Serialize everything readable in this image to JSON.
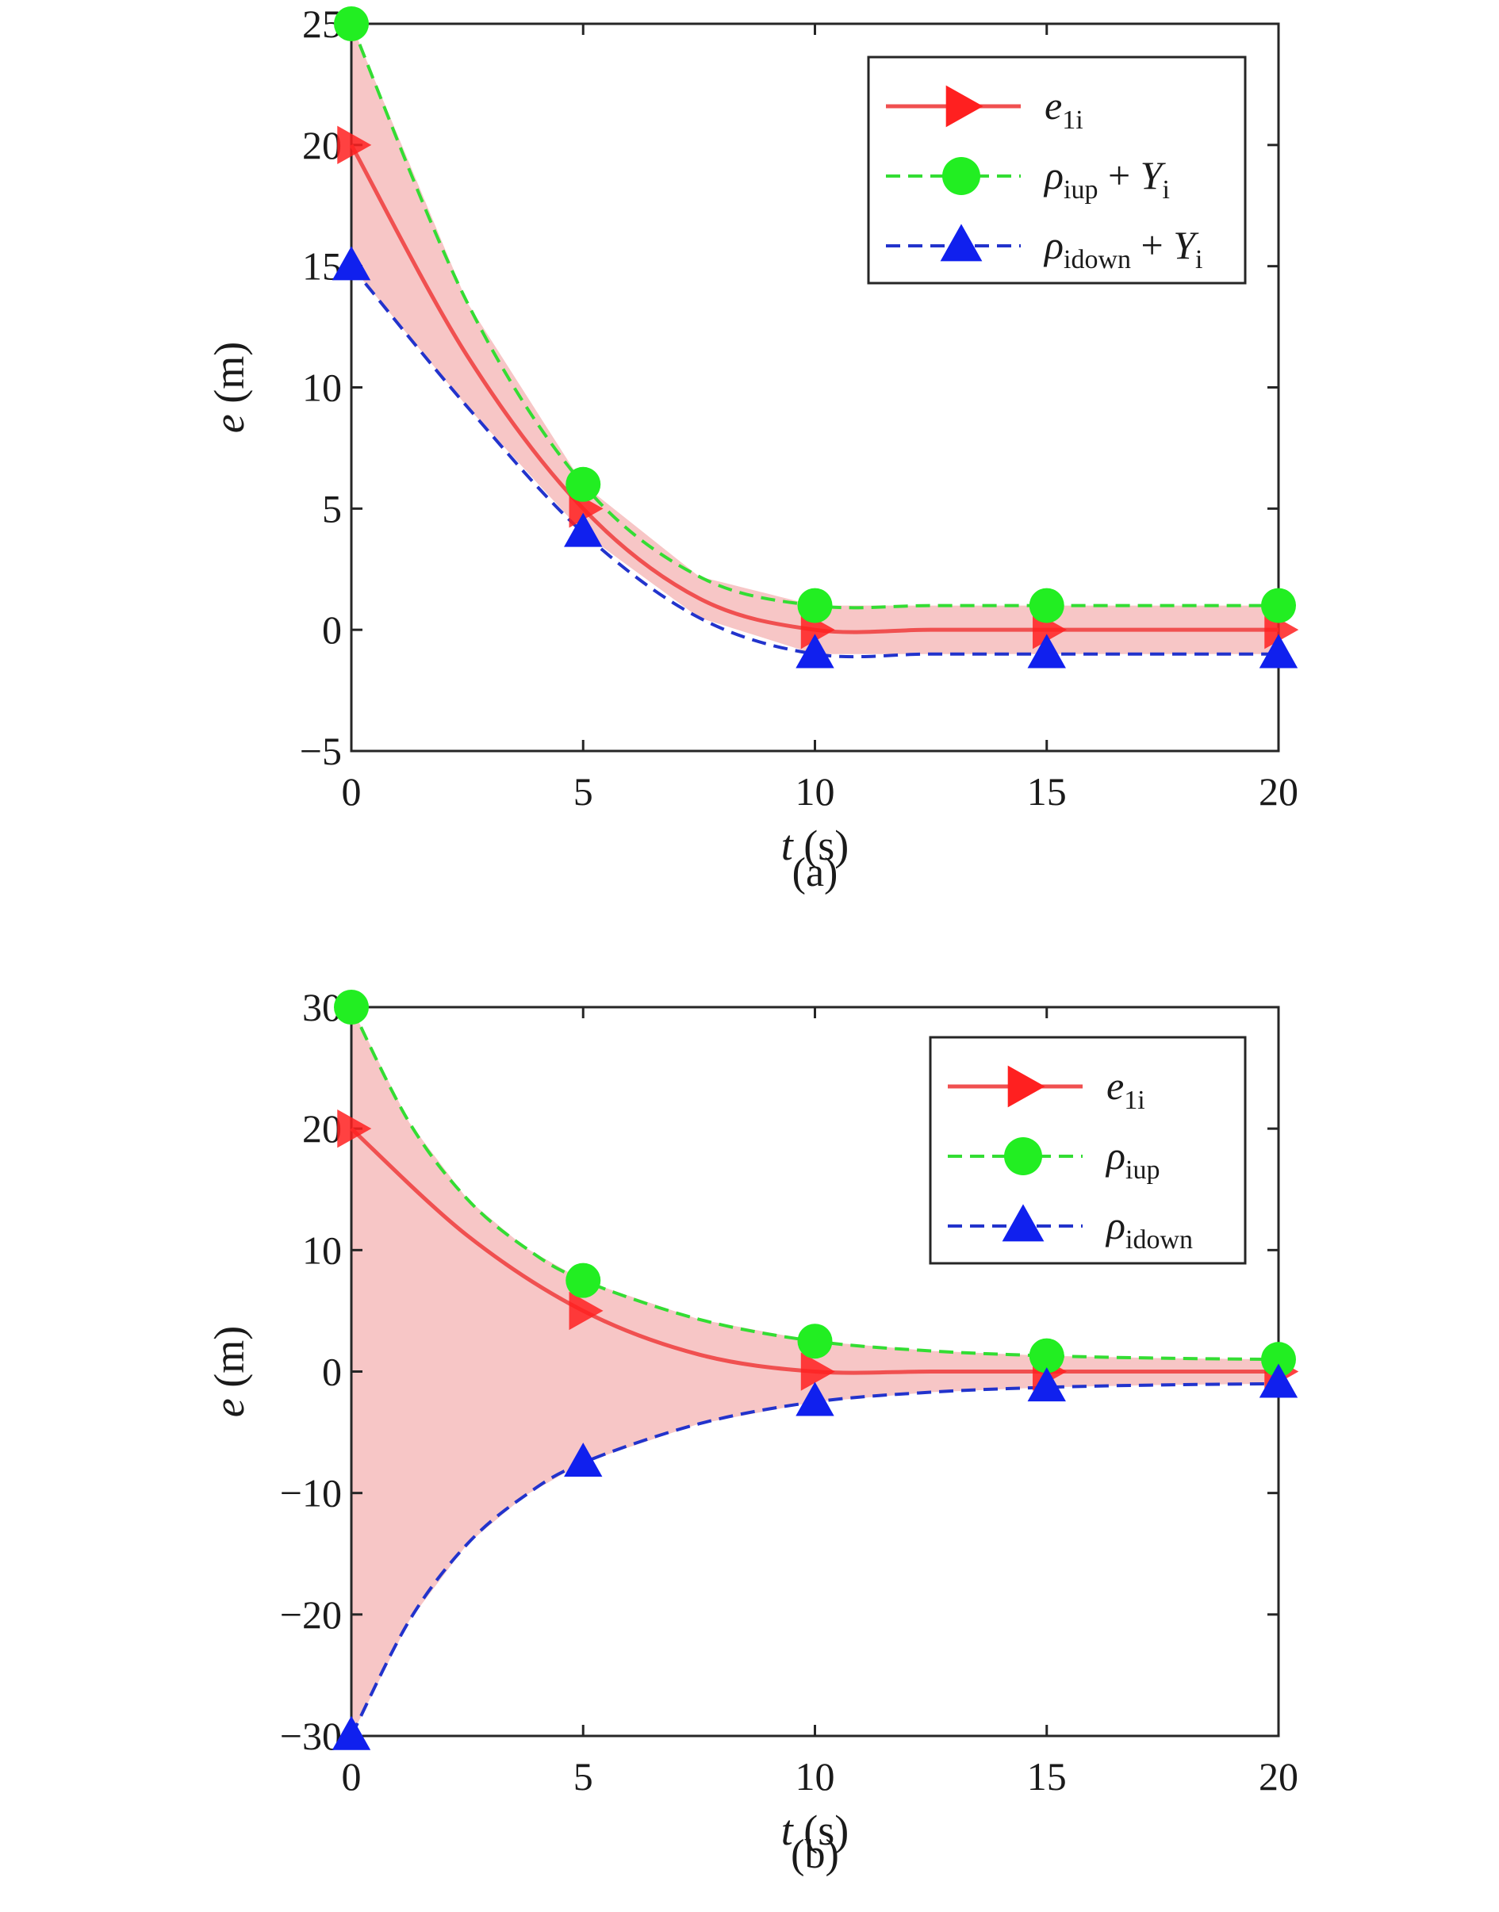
{
  "chart_data": [
    {
      "type": "line",
      "caption": "(a)",
      "xlabel": "t (s)",
      "ylabel": "e (m)",
      "xlim": [
        0,
        20
      ],
      "ylim": [
        -5,
        25
      ],
      "xticks": [
        "0",
        "5",
        "10",
        "15",
        "20"
      ],
      "yticks": [
        "−5",
        "0",
        "5",
        "10",
        "15",
        "20",
        "25"
      ],
      "x_ticks_values": [
        0,
        5,
        10,
        15,
        20
      ],
      "y_ticks_values": [
        -5,
        0,
        5,
        10,
        15,
        20,
        25
      ],
      "legend_position": "top-right",
      "shaded_band": {
        "between": [
          "rho_iup + Y_i",
          "rho_idown + Y_i"
        ],
        "color": "#f7c6c6"
      },
      "series": [
        {
          "key": "e1i",
          "name": "e1i",
          "legend": {
            "base": "e",
            "sub": "1i",
            "suffix": ""
          },
          "color": "#f05050",
          "marker": "triangle-right",
          "marker_color": "#ff2020",
          "dash": "solid",
          "x": [
            0,
            2.5,
            5,
            7.5,
            10,
            12.5,
            15,
            17.5,
            20
          ],
          "y": [
            20,
            11.3,
            5,
            1.3,
            0,
            0,
            0,
            0,
            0
          ],
          "marker_x": [
            0,
            5,
            10,
            15,
            20
          ]
        },
        {
          "key": "up",
          "name": "rho_iup + Y_i",
          "legend": {
            "base": "ρ",
            "sub": "iup",
            "suffix": " + Y",
            "suffix_sub": "i"
          },
          "color": "#33dd33",
          "marker": "circle",
          "marker_color": "#22ee22",
          "dash": "dashed",
          "x": [
            0,
            2.5,
            5,
            7.5,
            10,
            12.5,
            15,
            17.5,
            20
          ],
          "y": [
            25,
            13.5,
            6,
            2.2,
            1,
            1,
            1,
            1,
            1
          ],
          "marker_x": [
            0,
            5,
            10,
            15,
            20
          ]
        },
        {
          "key": "down",
          "name": "rho_idown + Y_i",
          "legend": {
            "base": "ρ",
            "sub": "idown",
            "suffix": " + Y",
            "suffix_sub": "i"
          },
          "color": "#2233cc",
          "marker": "triangle-up",
          "marker_color": "#1020ee",
          "dash": "dashed",
          "x": [
            0,
            2.5,
            5,
            7.5,
            10,
            12.5,
            15,
            17.5,
            20
          ],
          "y": [
            15,
            9.2,
            4,
            0.5,
            -1,
            -1,
            -1,
            -1,
            -1
          ],
          "marker_x": [
            0,
            5,
            10,
            15,
            20
          ]
        }
      ]
    },
    {
      "type": "line",
      "caption": "(b)",
      "xlabel": "t (s)",
      "ylabel": "e (m)",
      "xlim": [
        0,
        20
      ],
      "ylim": [
        -30,
        30
      ],
      "xticks": [
        "0",
        "5",
        "10",
        "15",
        "20"
      ],
      "yticks": [
        "−30",
        "−20",
        "−10",
        "0",
        "10",
        "20",
        "30"
      ],
      "x_ticks_values": [
        0,
        5,
        10,
        15,
        20
      ],
      "y_ticks_values": [
        -30,
        -20,
        -10,
        0,
        10,
        20,
        30
      ],
      "legend_position": "top-right",
      "shaded_band": {
        "between": [
          "rho_iup",
          "rho_idown"
        ],
        "color": "#f7c6c6"
      },
      "series": [
        {
          "key": "e1i",
          "name": "e1i",
          "legend": {
            "base": "e",
            "sub": "1i",
            "suffix": ""
          },
          "color": "#f05050",
          "marker": "triangle-right",
          "marker_color": "#ff2020",
          "dash": "solid",
          "x": [
            0,
            2.5,
            5,
            7.5,
            10,
            12.5,
            15,
            17.5,
            20
          ],
          "y": [
            20,
            11.2,
            5,
            1.4,
            0,
            0,
            0,
            0,
            0
          ],
          "marker_x": [
            0,
            5,
            10,
            15,
            20
          ]
        },
        {
          "key": "up",
          "name": "rho_iup",
          "legend": {
            "base": "ρ",
            "sub": "iup",
            "suffix": ""
          },
          "color": "#33dd33",
          "marker": "circle",
          "marker_color": "#22ee22",
          "dash": "dashed",
          "x": [
            0,
            1.25,
            2.5,
            3.75,
            5,
            7.5,
            10,
            12.5,
            15,
            17.5,
            20
          ],
          "y": [
            30,
            20.5,
            14.2,
            10.2,
            7.5,
            4.3,
            2.5,
            1.7,
            1.3,
            1.1,
            1
          ],
          "marker_x": [
            0,
            5,
            10,
            15,
            20
          ]
        },
        {
          "key": "down",
          "name": "rho_idown",
          "legend": {
            "base": "ρ",
            "sub": "idown",
            "suffix": ""
          },
          "color": "#2233cc",
          "marker": "triangle-up",
          "marker_color": "#1020ee",
          "dash": "dashed",
          "x": [
            0,
            1.25,
            2.5,
            3.75,
            5,
            7.5,
            10,
            12.5,
            15,
            17.5,
            20
          ],
          "y": [
            -30,
            -20.5,
            -14.2,
            -10.2,
            -7.5,
            -4.3,
            -2.5,
            -1.7,
            -1.3,
            -1.1,
            -1
          ],
          "marker_x": [
            0,
            5,
            10,
            15,
            20
          ]
        }
      ]
    }
  ]
}
